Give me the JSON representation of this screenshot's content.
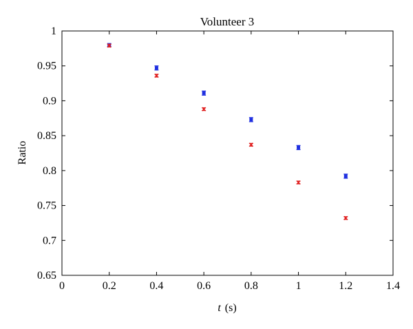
{
  "chart_data": {
    "type": "scatter",
    "title": "Volunteer 3",
    "xlabel_italic": "t",
    "xlabel_unit": "(s)",
    "ylabel": "Ratio",
    "xlim": [
      0,
      1.4
    ],
    "ylim": [
      0.65,
      1.0
    ],
    "x_ticks": [
      "0",
      "0.2",
      "0.4",
      "0.6",
      "0.8",
      "1",
      "1.2",
      "1.4"
    ],
    "y_ticks": [
      "0.65",
      "0.7",
      "0.75",
      "0.8",
      "0.85",
      "0.9",
      "0.95",
      "1"
    ],
    "grid": false,
    "series": [
      {
        "color": "#1f2fe0",
        "marker": "square",
        "points": [
          {
            "x": 0.2,
            "y": 0.98,
            "err": 0.002
          },
          {
            "x": 0.4,
            "y": 0.947,
            "err": 0.003
          },
          {
            "x": 0.6,
            "y": 0.911,
            "err": 0.003
          },
          {
            "x": 0.8,
            "y": 0.873,
            "err": 0.003
          },
          {
            "x": 1.0,
            "y": 0.833,
            "err": 0.003
          },
          {
            "x": 1.2,
            "y": 0.792,
            "err": 0.003
          }
        ]
      },
      {
        "color": "#e01f1f",
        "marker": "x",
        "points": [
          {
            "x": 0.2,
            "y": 0.979,
            "err": 0.002
          },
          {
            "x": 0.4,
            "y": 0.936,
            "err": 0.002
          },
          {
            "x": 0.6,
            "y": 0.888,
            "err": 0.002
          },
          {
            "x": 0.8,
            "y": 0.837,
            "err": 0.002
          },
          {
            "x": 1.0,
            "y": 0.783,
            "err": 0.002
          },
          {
            "x": 1.2,
            "y": 0.732,
            "err": 0.002
          }
        ]
      }
    ]
  }
}
